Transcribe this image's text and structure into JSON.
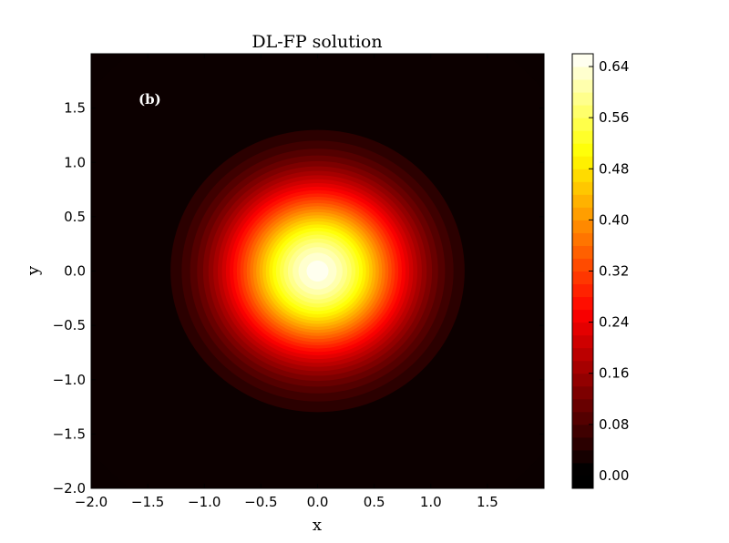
{
  "chart_data": {
    "type": "heatmap",
    "subtype": "filled-contour",
    "title": "DL-FP solution",
    "xlabel": "x",
    "ylabel": "y",
    "panel_label": "(b)",
    "xlim": [
      -2.0,
      2.0
    ],
    "ylim": [
      -2.0,
      2.0
    ],
    "x_ticks": [
      -2.0,
      -1.5,
      -1.0,
      -0.5,
      0.0,
      0.5,
      1.0,
      1.5
    ],
    "y_ticks": [
      -2.0,
      -1.5,
      -1.0,
      -0.5,
      0.0,
      0.5,
      1.0,
      1.5
    ],
    "x_tick_labels": [
      "−2.0",
      "−1.5",
      "−1.0",
      "−0.5",
      "0.0",
      "0.5",
      "1.0",
      "1.5"
    ],
    "y_tick_labels": [
      "−2.0",
      "−1.5",
      "−1.0",
      "−0.5",
      "0.0",
      "0.5",
      "1.0",
      "1.5"
    ],
    "colormap": "hot",
    "colorbar": {
      "vmin": -0.02,
      "vmax": 0.66,
      "ticks": [
        0.0,
        0.08,
        0.16,
        0.24,
        0.32,
        0.4,
        0.48,
        0.56,
        0.64
      ],
      "tick_labels": [
        "0.00",
        "0.08",
        "0.16",
        "0.24",
        "0.32",
        "0.40",
        "0.48",
        "0.56",
        "0.64"
      ],
      "level_step": 0.02
    },
    "field": {
      "shape": "radially symmetric gaussian bump",
      "center": [
        0.0,
        0.0
      ],
      "peak_value": 0.65,
      "sigma": 0.55,
      "background_value": 0.02,
      "background_radius": 2.0
    },
    "grid": false
  }
}
